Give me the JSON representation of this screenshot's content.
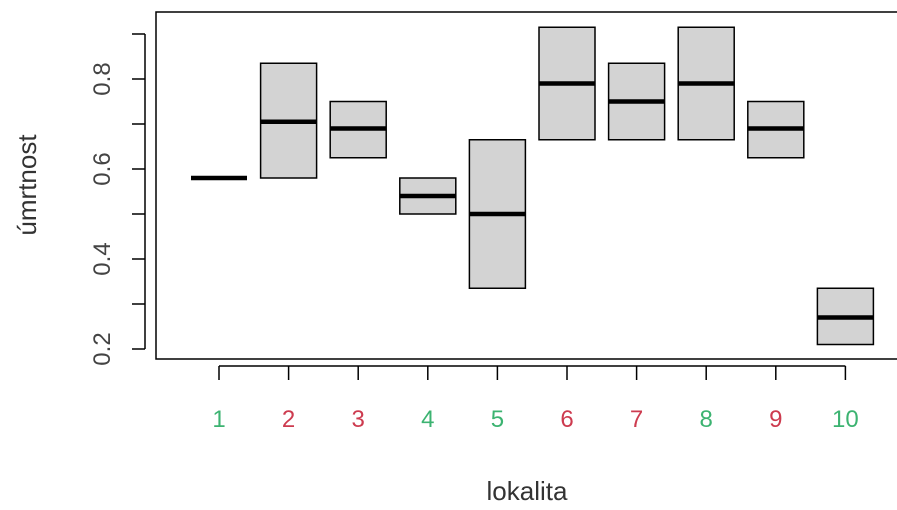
{
  "chart_data": {
    "type": "boxplot",
    "xlabel": "lokalita",
    "ylabel": "úmrtnost",
    "ylim": [
      0.2,
      0.92
    ],
    "yticks": [
      0.2,
      0.3,
      0.4,
      0.5,
      0.6,
      0.7,
      0.8,
      0.9
    ],
    "yticklabels": [
      "0.2",
      "",
      "0.4",
      "",
      "0.6",
      "",
      "0.8",
      ""
    ],
    "grid": false,
    "box_fill": "#d3d3d3",
    "median_color": "#000000",
    "categories": [
      {
        "label": "1",
        "color": "#3cb371",
        "lower": 0.58,
        "median": 0.58,
        "upper": 0.58
      },
      {
        "label": "2",
        "color": "#cd3b4f",
        "lower": 0.58,
        "median": 0.705,
        "upper": 0.835
      },
      {
        "label": "3",
        "color": "#cd3b4f",
        "lower": 0.625,
        "median": 0.69,
        "upper": 0.75
      },
      {
        "label": "4",
        "color": "#3cb371",
        "lower": 0.5,
        "median": 0.54,
        "upper": 0.58
      },
      {
        "label": "5",
        "color": "#3cb371",
        "lower": 0.335,
        "median": 0.5,
        "upper": 0.665
      },
      {
        "label": "6",
        "color": "#cd3b4f",
        "lower": 0.665,
        "median": 0.79,
        "upper": 0.915
      },
      {
        "label": "7",
        "color": "#cd3b4f",
        "lower": 0.665,
        "median": 0.75,
        "upper": 0.835
      },
      {
        "label": "8",
        "color": "#3cb371",
        "lower": 0.665,
        "median": 0.79,
        "upper": 0.915
      },
      {
        "label": "9",
        "color": "#cd3b4f",
        "lower": 0.625,
        "median": 0.69,
        "upper": 0.75
      },
      {
        "label": "10",
        "color": "#3cb371",
        "lower": 0.21,
        "median": 0.27,
        "upper": 0.335
      }
    ]
  }
}
